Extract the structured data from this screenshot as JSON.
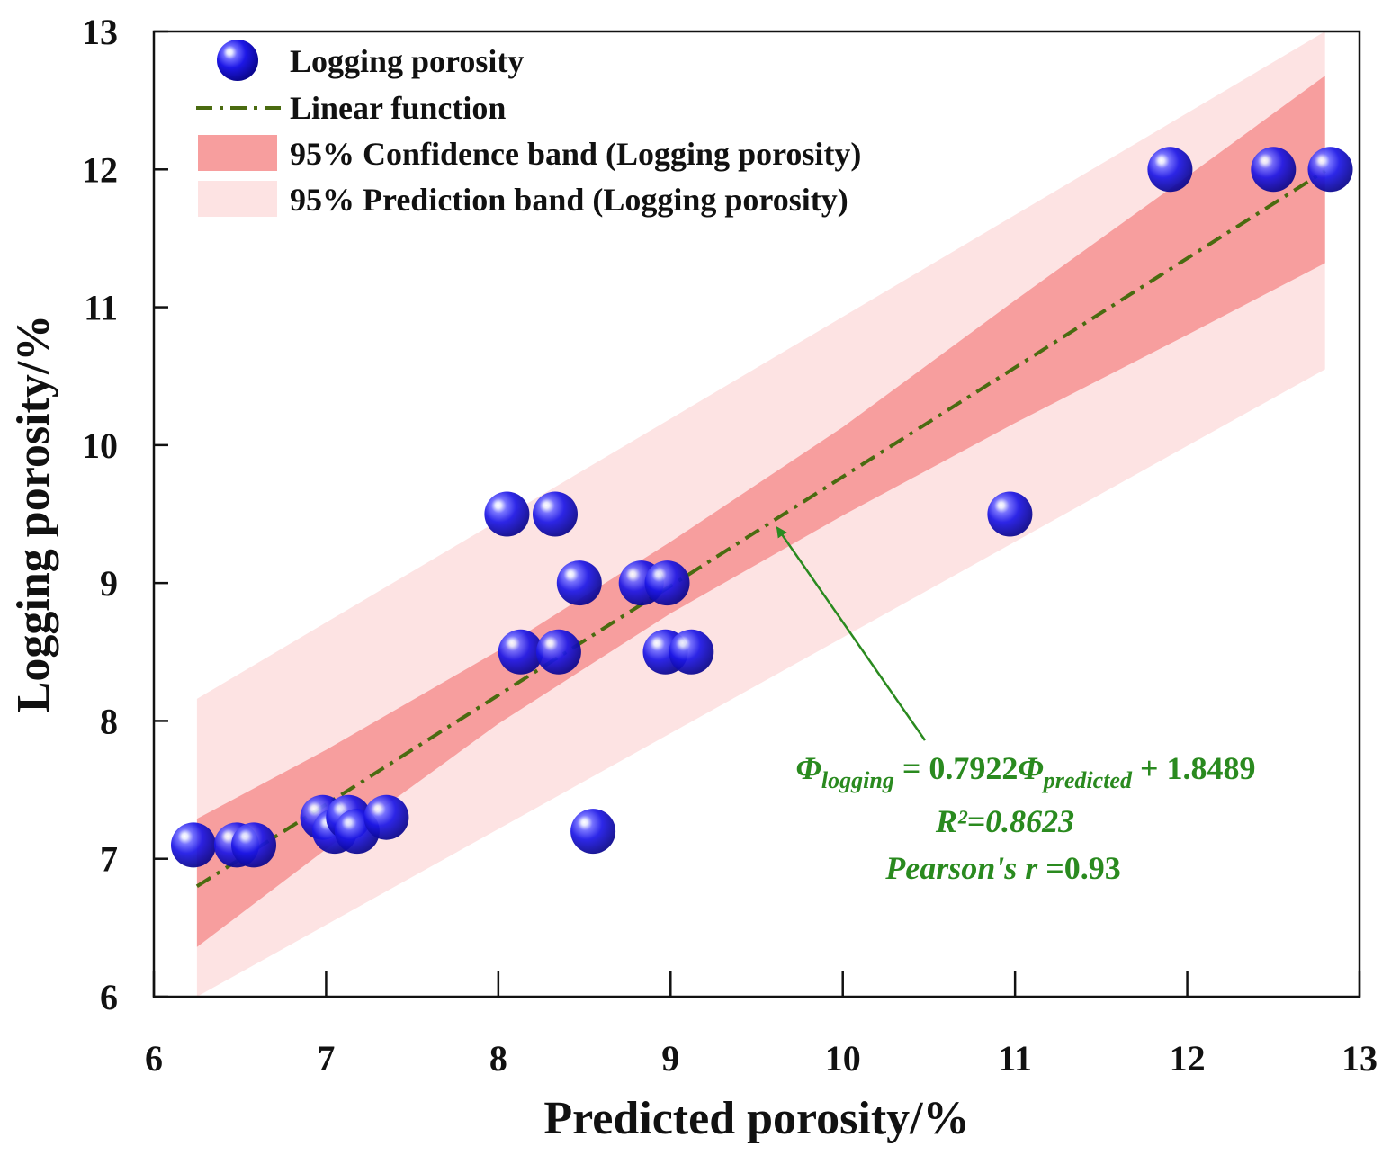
{
  "chart_data": {
    "type": "scatter",
    "title": "",
    "xlabel": "Predicted porosity/%",
    "ylabel": "Logging porosity/%",
    "xlim": [
      6,
      13
    ],
    "ylim": [
      6,
      13
    ],
    "xticks": [
      6,
      7,
      8,
      9,
      10,
      11,
      12,
      13
    ],
    "yticks": [
      6,
      7,
      8,
      9,
      10,
      11,
      12,
      13
    ],
    "legend": {
      "placement": "top-left",
      "entries": [
        "Logging porosity",
        "Linear function",
        "95% Confidence band (Logging porosity)",
        "95% Prediction band (Logging porosity)"
      ]
    },
    "series": [
      {
        "name": "Logging porosity",
        "points": [
          [
            6.23,
            7.1
          ],
          [
            6.48,
            7.1
          ],
          [
            6.58,
            7.1
          ],
          [
            6.98,
            7.3
          ],
          [
            7.05,
            7.2
          ],
          [
            7.13,
            7.3
          ],
          [
            7.18,
            7.2
          ],
          [
            7.35,
            7.3
          ],
          [
            8.55,
            7.2
          ],
          [
            8.13,
            8.5
          ],
          [
            8.35,
            8.5
          ],
          [
            8.97,
            8.5
          ],
          [
            9.12,
            8.5
          ],
          [
            8.47,
            9.0
          ],
          [
            8.83,
            9.0
          ],
          [
            8.98,
            9.0
          ],
          [
            8.05,
            9.5
          ],
          [
            8.33,
            9.5
          ],
          [
            10.97,
            9.5
          ],
          [
            11.9,
            12.0
          ],
          [
            12.5,
            12.0
          ],
          [
            12.83,
            12.0
          ]
        ],
        "color": "#1a14e0"
      }
    ],
    "fit": {
      "name": "Linear function",
      "slope": 0.7922,
      "intercept": 1.8489,
      "x_range": [
        6.25,
        12.8
      ],
      "color": "#4a6b10"
    },
    "confidence_band": {
      "name": "95% Confidence band (Logging porosity)",
      "x": [
        6.25,
        7.0,
        8.0,
        9.0,
        10.0,
        11.0,
        12.0,
        12.8
      ],
      "lower": [
        6.36,
        7.07,
        7.98,
        8.78,
        9.49,
        10.16,
        10.8,
        11.32
      ],
      "upper": [
        7.29,
        7.79,
        8.51,
        9.3,
        10.13,
        11.05,
        11.95,
        12.68
      ],
      "color": "#f79e9e"
    },
    "prediction_band": {
      "name": "95% Prediction band (Logging porosity)",
      "x": [
        6.25,
        12.8
      ],
      "lower": [
        6.0,
        10.55
      ],
      "upper": [
        8.16,
        13.0
      ],
      "color": "#fde3e3"
    },
    "annotation": {
      "equation": {
        "phi": "Φ",
        "sub_logging": "logging",
        "eq_mid": " = 0.7922",
        "sub_predicted": "predicted",
        "eq_end": " + 1.8489"
      },
      "r2": "R²=0.8623",
      "pearson_label": "Pearson's r",
      "pearson_value": " =0.93",
      "arrow_target": [
        9.62,
        9.4
      ],
      "color": "#2a8a1f"
    }
  }
}
